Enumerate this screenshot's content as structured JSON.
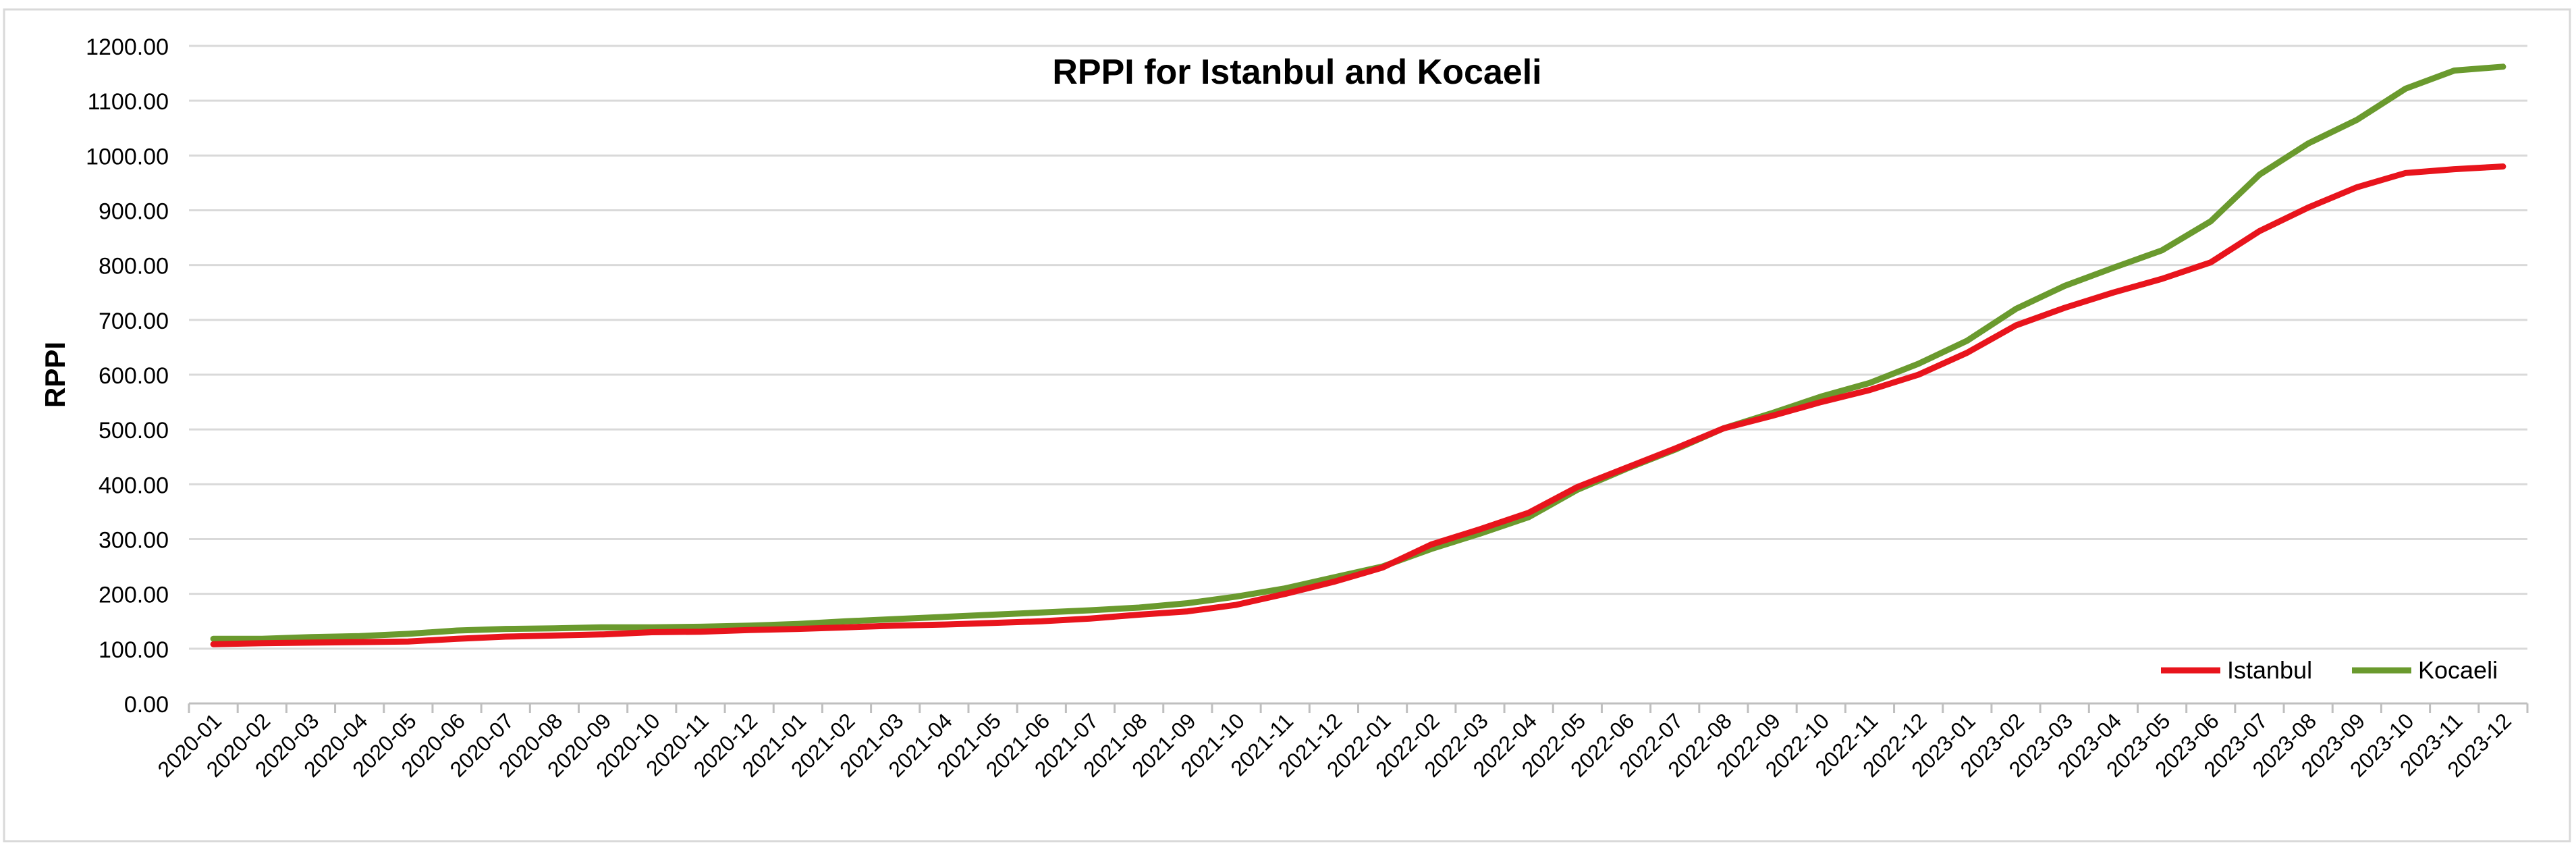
{
  "chart_data": {
    "type": "line",
    "title": "RPPI for Istanbul and Kocaeli",
    "xlabel": "",
    "ylabel": "RPPI",
    "ylim": [
      0,
      1200
    ],
    "yticks": [
      "0.00",
      "100.00",
      "200.00",
      "300.00",
      "400.00",
      "500.00",
      "600.00",
      "700.00",
      "800.00",
      "900.00",
      "1000.00",
      "1100.00",
      "1200.00"
    ],
    "grid": true,
    "legend_position": "bottom-right",
    "x": [
      "2020-01",
      "2020-02",
      "2020-03",
      "2020-04",
      "2020-05",
      "2020-06",
      "2020-07",
      "2020-08",
      "2020-09",
      "2020-10",
      "2020-11",
      "2020-12",
      "2021-01",
      "2021-02",
      "2021-03",
      "2021-04",
      "2021-05",
      "2021-06",
      "2021-07",
      "2021-08",
      "2021-09",
      "2021-10",
      "2021-11",
      "2021-12",
      "2022-01",
      "2022-02",
      "2022-03",
      "2022-04",
      "2022-05",
      "2022-06",
      "2022-07",
      "2022-08",
      "2022-09",
      "2022-10",
      "2022-11",
      "2022-12",
      "2023-01",
      "2023-02",
      "2023-03",
      "2023-04",
      "2023-05",
      "2023-06",
      "2023-07",
      "2023-08",
      "2023-09",
      "2023-10",
      "2023-11",
      "2023-12"
    ],
    "series": [
      {
        "name": "Istanbul",
        "color": "#e8141c",
        "values": [
          108,
          110,
          111,
          112,
          113,
          118,
          122,
          124,
          126,
          130,
          131,
          134,
          136,
          139,
          142,
          144,
          147,
          150,
          155,
          162,
          168,
          180,
          200,
          222,
          248,
          290,
          318,
          348,
          395,
          430,
          465,
          502,
          525,
          550,
          572,
          600,
          640,
          690,
          722,
          750,
          775,
          805,
          862,
          905,
          942,
          968,
          975,
          980
        ]
      },
      {
        "name": "Kocaeli",
        "color": "#6a9a2e",
        "values": [
          118,
          118,
          121,
          123,
          127,
          133,
          136,
          137,
          139,
          139,
          140,
          142,
          145,
          150,
          154,
          158,
          162,
          166,
          170,
          175,
          183,
          195,
          210,
          230,
          250,
          282,
          310,
          340,
          390,
          428,
          463,
          502,
          530,
          560,
          585,
          620,
          662,
          720,
          762,
          795,
          827,
          880,
          965,
          1022,
          1065,
          1122,
          1155,
          1162
        ]
      }
    ]
  }
}
